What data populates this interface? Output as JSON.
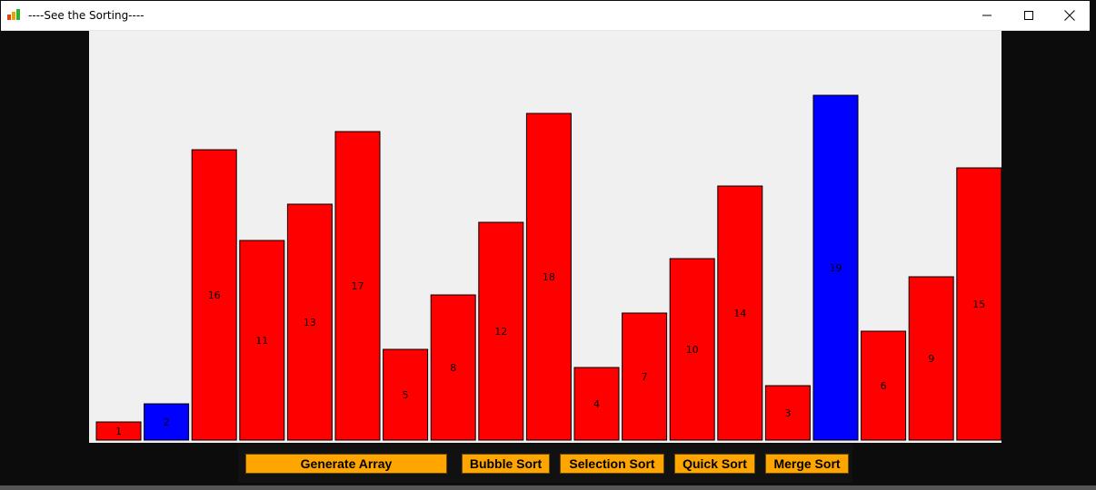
{
  "window": {
    "title": "----See the Sorting----"
  },
  "controls": {
    "generate_label": "Generate Array",
    "bubble_label": "Bubble Sort",
    "selection_label": "Selection Sort",
    "quick_label": "Quick Sort",
    "merge_label": "Merge Sort"
  },
  "colors": {
    "bar_default": "#ff0000",
    "bar_highlight": "#0000ff",
    "button": "#ffa500",
    "canvas_bg": "#f0f0f0"
  },
  "chart_data": {
    "type": "bar",
    "values": [
      1,
      2,
      16,
      11,
      13,
      17,
      5,
      8,
      12,
      18,
      4,
      7,
      10,
      14,
      3,
      19,
      6,
      9,
      15
    ],
    "highlighted_indices": [
      1,
      15
    ]
  }
}
